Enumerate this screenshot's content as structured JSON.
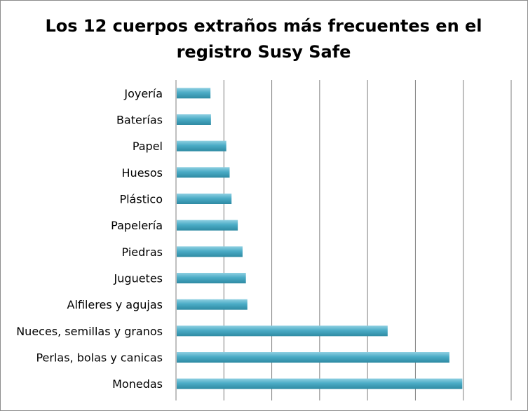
{
  "chart_data": {
    "type": "bar",
    "orientation": "horizontal",
    "title": "Los 12 cuerpos extraños más frecuentes en el registro Susy Safe",
    "xlabel": "",
    "ylabel": "",
    "categories": [
      "Joyería",
      "Baterías",
      "Papel",
      "Huesos",
      "Plástico",
      "Papelería",
      "Piedras",
      "Juguetes",
      "Alfileres y agujas",
      "Nueces, semillas y granos",
      "Perlas, bolas y canicas",
      "Monedas"
    ],
    "values": [
      7.2,
      7.3,
      10.5,
      11.2,
      11.6,
      12.9,
      13.9,
      14.6,
      14.9,
      44.2,
      57.1,
      59.8
    ],
    "xlim": [
      0,
      70
    ],
    "x_gridlines": [
      0,
      10,
      20,
      30,
      40,
      50,
      60,
      70
    ],
    "x_tick_labels_visible": false,
    "grid": true,
    "legend": "none",
    "colors": {
      "bar": "#4bacc6",
      "bar_dark": "#2e8aa3",
      "bar_light": "#8fd0e2",
      "gridline": "#7f7f7f",
      "axis": "#7f7f7f"
    }
  }
}
